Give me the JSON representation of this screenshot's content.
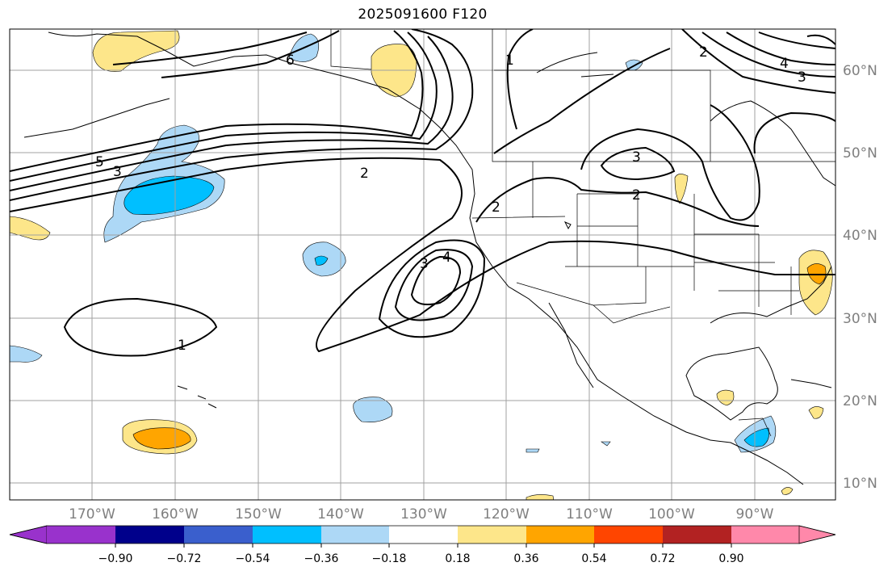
{
  "title": "2025091600 F120",
  "longitude_labels": [
    "170°W",
    "160°W",
    "150°W",
    "140°W",
    "130°W",
    "120°W",
    "110°W",
    "100°W",
    "90°W"
  ],
  "latitude_labels": [
    "60°N",
    "50°N",
    "40°N",
    "30°N",
    "20°N",
    "10°N"
  ],
  "contour_labels": [
    "5",
    "3",
    "2",
    "6",
    "1",
    "2",
    "4",
    "3",
    "3",
    "2",
    "2",
    "3",
    "4",
    "1"
  ],
  "colorbar": {
    "colors": [
      "#9932cc",
      "#00008b",
      "#3a5fcd",
      "#00bfff",
      "#add8f6",
      "#ffffff",
      "#fde68a",
      "#ffa500",
      "#ff4500",
      "#b22222",
      "#ff88aa"
    ],
    "tick_labels": [
      "−0.90",
      "−0.72",
      "−0.54",
      "−0.36",
      "−0.18",
      "0.18",
      "0.36",
      "0.54",
      "0.72",
      "0.90"
    ]
  }
}
